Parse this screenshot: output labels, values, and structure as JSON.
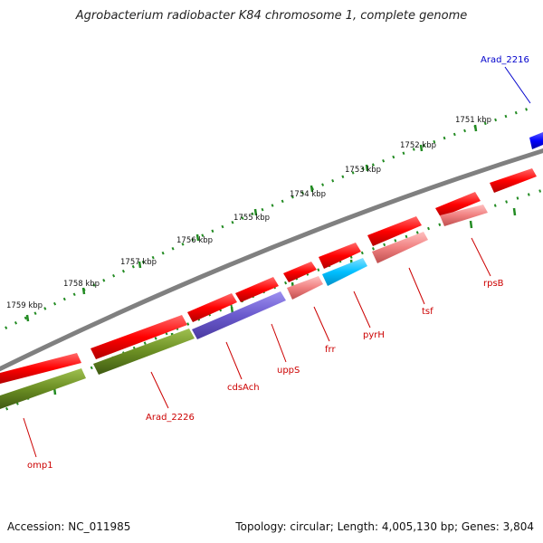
{
  "header": {
    "title": "Agrobacterium radiobacter K84 chromosome 1, complete genome"
  },
  "footer": {
    "accession": "Accession: NC_011985",
    "topology": "Topology: circular; Length: 4,005,130 bp; Genes: 3,804"
  },
  "colors": {
    "backbone": "#808080",
    "gene_red": "#ff0000",
    "gene_pink": "#f08080",
    "gene_olive": "#6b8e23",
    "gene_purple": "#6a5acd",
    "gene_cyan": "#00bfff",
    "gene_blue": "#0000ff",
    "ticks": "#228b22",
    "label_red": "#cc0000",
    "label_blue": "#0000cc"
  },
  "ruler": {
    "unit": "kbp",
    "labels": [
      "1751 kbp",
      "1752 kbp",
      "1753 kbp",
      "1754 kbp",
      "1755 kbp",
      "1756 kbp",
      "1757 kbp",
      "1758 kbp",
      "1759 kbp"
    ]
  },
  "gene_labels": [
    {
      "text": "Arad_2216",
      "color": "blue"
    },
    {
      "text": "rpsB",
      "color": "red"
    },
    {
      "text": "tsf",
      "color": "red"
    },
    {
      "text": "pyrH",
      "color": "red"
    },
    {
      "text": "frr",
      "color": "red"
    },
    {
      "text": "uppS",
      "color": "red"
    },
    {
      "text": "cdsAch",
      "color": "red"
    },
    {
      "text": "Arad_2226",
      "color": "red"
    },
    {
      "text": "omp1",
      "color": "red"
    }
  ]
}
